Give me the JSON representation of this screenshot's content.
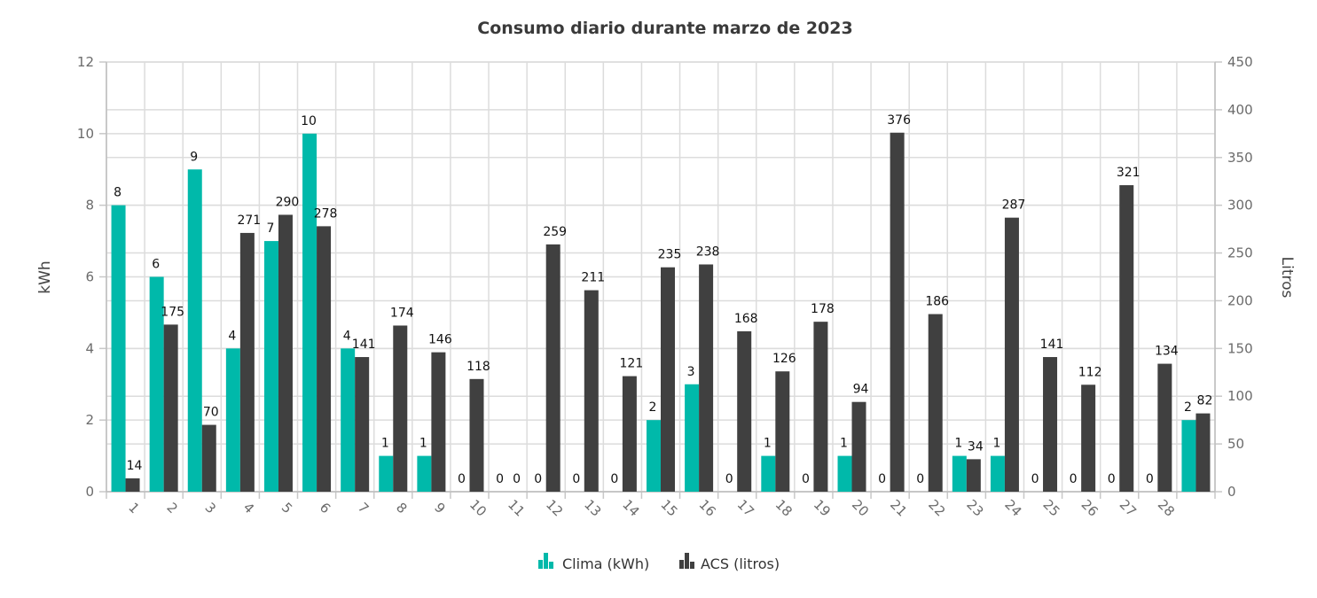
{
  "chart_data": {
    "type": "bar",
    "title": "Consumo diario durante marzo de 2023",
    "xlabel": "",
    "ylabel_left": "kWh",
    "ylabel_right": "Litros",
    "ylim_left": [
      0,
      12
    ],
    "ylim_right": [
      0,
      450
    ],
    "yticks_left": [
      "0",
      "2",
      "4",
      "6",
      "8",
      "10",
      "12"
    ],
    "yticks_right": [
      "0",
      "50",
      "100",
      "150",
      "200",
      "250",
      "300",
      "350",
      "400",
      "450"
    ],
    "grid": true,
    "legend_position": "bottom",
    "categories": [
      "1",
      "2",
      "3",
      "4",
      "5",
      "6",
      "7",
      "8",
      "9",
      "10",
      "11",
      "12",
      "13",
      "14",
      "15",
      "16",
      "17",
      "18",
      "19",
      "20",
      "21",
      "22",
      "23",
      "24",
      "25",
      "26",
      "27",
      "28",
      ""
    ],
    "series": [
      {
        "name": "Clima (kWh)",
        "axis": "left",
        "color": "#00b9aa",
        "values": [
          8,
          6,
          9,
          4,
          7,
          10,
          4,
          1,
          1,
          0,
          0,
          0,
          0,
          0,
          2,
          3,
          0,
          1,
          0,
          1,
          0,
          0,
          1,
          1,
          0,
          0,
          0,
          0,
          2
        ]
      },
      {
        "name": "ACS (litros)",
        "axis": "right",
        "color": "#404040",
        "values": [
          14,
          175,
          70,
          271,
          290,
          278,
          141,
          174,
          146,
          118,
          0,
          259,
          211,
          121,
          235,
          238,
          168,
          126,
          178,
          94,
          376,
          186,
          34,
          287,
          141,
          112,
          321,
          134,
          82
        ]
      }
    ]
  }
}
